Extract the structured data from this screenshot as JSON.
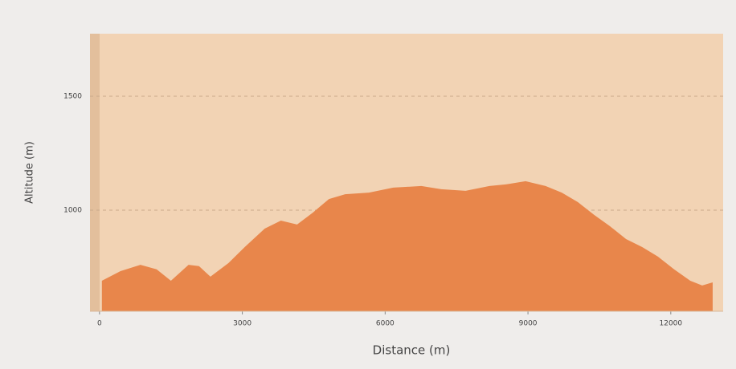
{
  "chart_data": {
    "type": "area",
    "x_label": "Distance (m)",
    "y_label": "Altitude (m)",
    "x": [
      50,
      440,
      860,
      1200,
      1500,
      1870,
      2090,
      2330,
      2710,
      3050,
      3470,
      3810,
      4150,
      4480,
      4820,
      5160,
      5660,
      6170,
      6760,
      7180,
      7690,
      8190,
      8530,
      8950,
      9370,
      9710,
      10050,
      10390,
      10720,
      11060,
      11400,
      11730,
      12070,
      12410,
      12660,
      12880
    ],
    "values": [
      690,
      732,
      760,
      740,
      690,
      760,
      754,
      708,
      768,
      838,
      919,
      954,
      937,
      989,
      1049,
      1070,
      1077,
      1099,
      1106,
      1092,
      1085,
      1106,
      1113,
      1127,
      1106,
      1077,
      1035,
      979,
      930,
      873,
      838,
      796,
      740,
      690,
      669,
      683
    ],
    "color": "#e8864b",
    "xlim": [
      -200,
      13100
    ],
    "ylim": [
      556,
      1775
    ],
    "xticks": [
      0,
      3000,
      6000,
      9000,
      12000
    ],
    "yticks": [
      1000,
      1500
    ],
    "grid": true
  }
}
